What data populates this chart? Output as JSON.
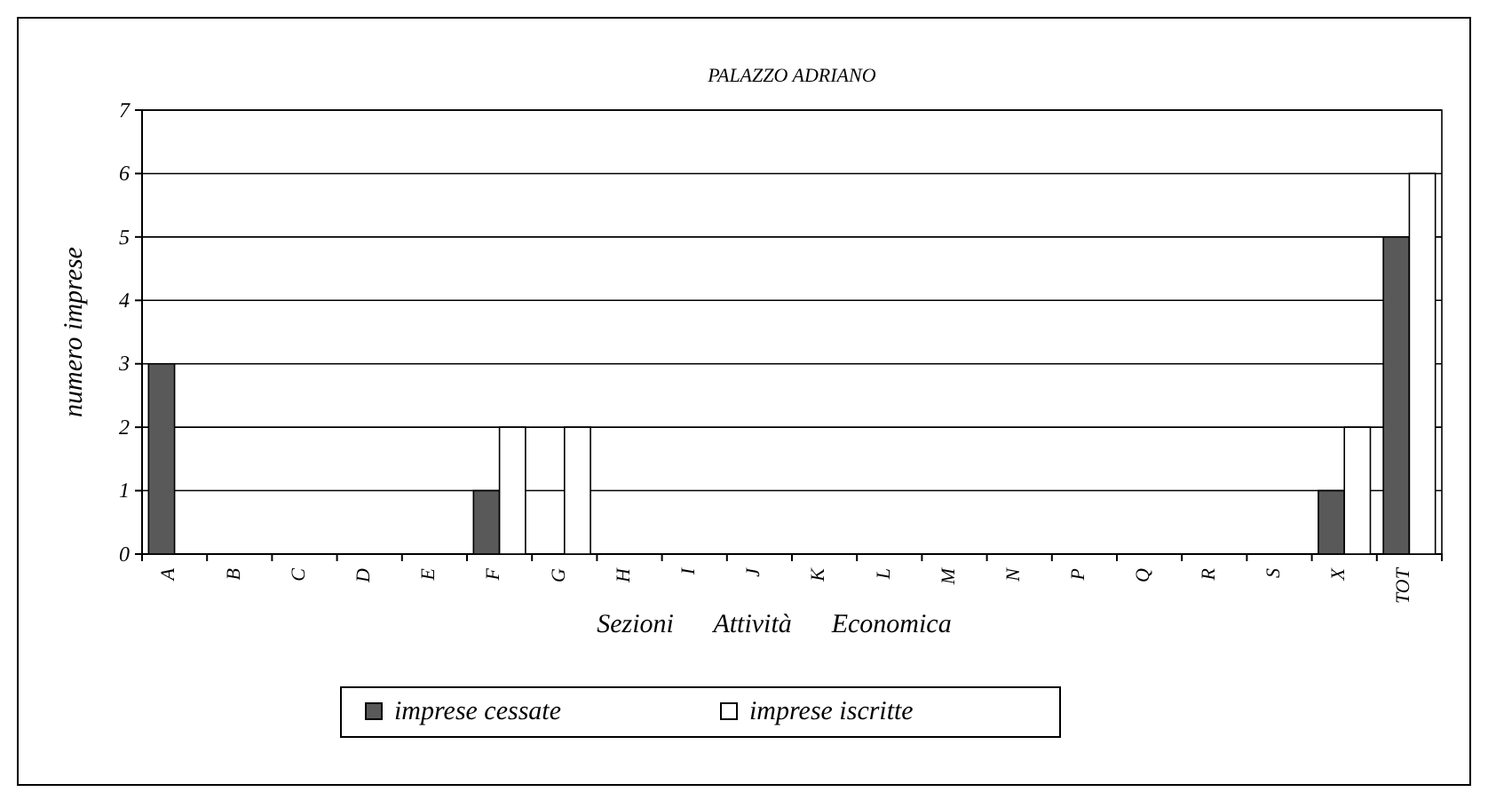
{
  "chart_data": {
    "type": "bar",
    "title": "PALAZZO ADRIANO",
    "xlabel": "Sezioni      Attività      Economica",
    "ylabel": "numero imprese",
    "categories": [
      "A",
      "B",
      "C",
      "D",
      "E",
      "F",
      "G",
      "H",
      "I",
      "J",
      "K",
      "L",
      "M",
      "N",
      "P",
      "Q",
      "R",
      "S",
      "X",
      "TOT"
    ],
    "series": [
      {
        "name": "imprese cessate",
        "color": "#595959",
        "values": [
          3,
          0,
          0,
          0,
          0,
          1,
          0,
          0,
          0,
          0,
          0,
          0,
          0,
          0,
          0,
          0,
          0,
          0,
          1,
          5
        ]
      },
      {
        "name": "imprese iscritte",
        "color": "#ffffff",
        "values": [
          0,
          0,
          0,
          0,
          0,
          2,
          2,
          0,
          0,
          0,
          0,
          0,
          0,
          0,
          0,
          0,
          0,
          0,
          2,
          6
        ]
      }
    ],
    "ylim": [
      0,
      7
    ],
    "yticks": [
      0,
      1,
      2,
      3,
      4,
      5,
      6,
      7
    ],
    "grid": "y",
    "legend": "bottom"
  }
}
